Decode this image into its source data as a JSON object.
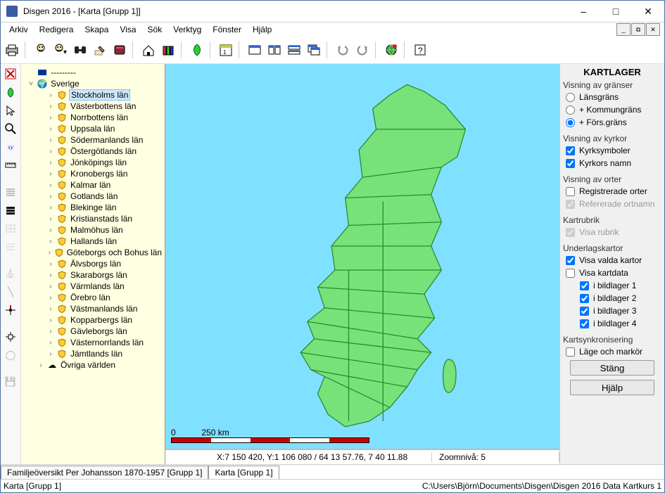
{
  "window": {
    "title": "Disgen 2016 - [Karta [Grupp 1]]",
    "accent": "#4a6ea0"
  },
  "menu": {
    "items": [
      "Arkiv",
      "Redigera",
      "Skapa",
      "Visa",
      "Sök",
      "Verktyg",
      "Fönster",
      "Hjälp"
    ]
  },
  "tree": {
    "root_dashes": "---------",
    "country": "Sverige",
    "world": "Övriga världen",
    "counties": [
      "Stockholms län",
      "Västerbottens län",
      "Norrbottens län",
      "Uppsala län",
      "Södermanlands län",
      "Östergötlands län",
      "Jönköpings län",
      "Kronobergs län",
      "Kalmar län",
      "Gotlands län",
      "Blekinge län",
      "Kristianstads län",
      "Malmöhus län",
      "Hallands län",
      "Göteborgs och Bohus län",
      "Älvsborgs län",
      "Skaraborgs län",
      "Värmlands län",
      "Örebro län",
      "Västmanlands län",
      "Kopparbergs län",
      "Gävleborgs län",
      "Västernorrlands län",
      "Jämtlands län"
    ],
    "selected_index": 0
  },
  "map": {
    "bg_color": "#80e0ff",
    "land_fill": "#77e27a",
    "land_stroke": "#2a8a2c",
    "scale_label_left": "0",
    "scale_label_right": "250 km",
    "coords": "X:7 150 420, Y:1 106 080 / 64 13 57.76, 7 40 11.88",
    "zoom": "Zoomnivå: 5"
  },
  "panel": {
    "title": "KARTLAGER",
    "g_borders": "Visning av gränser",
    "r_lan": "Länsgräns",
    "r_kommun": "+ Kommungräns",
    "r_fors": "+ Förs.gräns",
    "g_churches": "Visning av kyrkor",
    "c_sym": "Kyrksymboler",
    "c_names": "Kyrkors namn",
    "g_places": "Visning av orter",
    "c_reg": "Registrerade orter",
    "c_ref": "Refererade ortnamn",
    "g_header": "Kartrubrik",
    "c_header": "Visa rubrik",
    "g_under": "Underlagskartor",
    "c_showsel": "Visa valda kartor",
    "c_showdata": "Visa kartdata",
    "c_b1": "i bildlager  1",
    "c_b2": "i bildlager  2",
    "c_b3": "i bildlager  3",
    "c_b4": "i bildlager  4",
    "g_sync": "Kartsynkronisering",
    "c_sync": "Läge och markör",
    "btn_close": "Stäng",
    "btn_help": "Hjälp"
  },
  "tabs": {
    "t1": "Familjeöversikt Per Johansson 1870-1957 [Grupp 1]",
    "t2": "Karta [Grupp 1]"
  },
  "status": {
    "left": "Karta [Grupp 1]",
    "right": "C:\\Users\\Björn\\Documents\\Disgen\\Disgen 2016 Data Kartkurs 1"
  }
}
